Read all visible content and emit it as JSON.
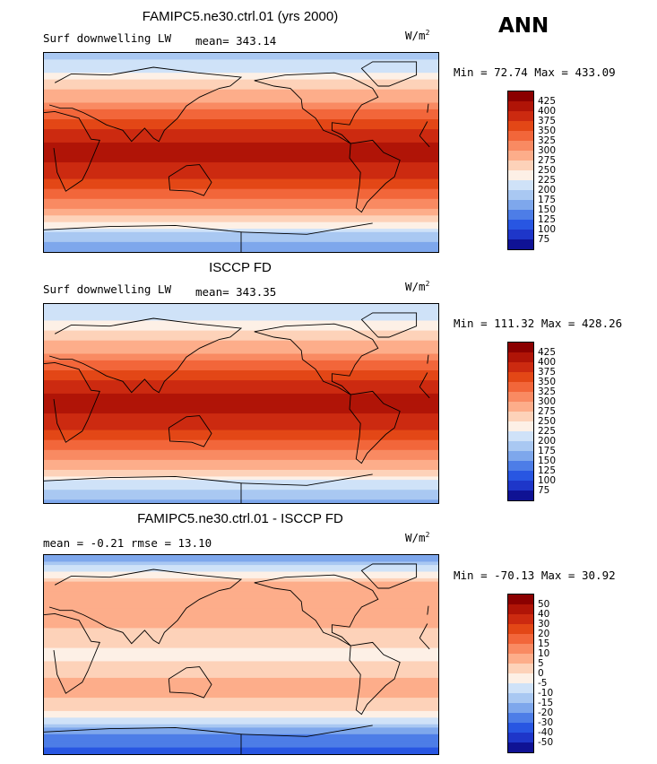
{
  "season": "ANN",
  "chart_data": [
    {
      "type": "heatmap",
      "title": "FAMIPC5.ne30.ctrl.01 (yrs 2000)",
      "field": "Surf downwelling LW",
      "stat_text": "mean= 343.14",
      "units": "W/m",
      "units_exp": "2",
      "minmax_text": "Min =  72.74 Max = 433.09",
      "mean": 343.14,
      "min": 72.74,
      "max": 433.09,
      "levels": [
        "425",
        "400",
        "375",
        "350",
        "325",
        "300",
        "275",
        "250",
        "225",
        "200",
        "175",
        "150",
        "125",
        "100",
        "75"
      ],
      "colors": [
        "#8b0000",
        "#b01407",
        "#cc2a10",
        "#e34716",
        "#f2663a",
        "#f98a62",
        "#fdad8a",
        "#fdd2b9",
        "#fdf0e6",
        "#cfe2f8",
        "#a9c8f2",
        "#7ea7ec",
        "#4d7de7",
        "#2856e2",
        "#1e36c9",
        "#0f1294"
      ],
      "zonal_profile": [
        [
          -90,
          150
        ],
        [
          -75,
          190
        ],
        [
          -60,
          265
        ],
        [
          -45,
          320
        ],
        [
          -30,
          360
        ],
        [
          -15,
          395
        ],
        [
          0,
          410
        ],
        [
          15,
          395
        ],
        [
          30,
          350
        ],
        [
          45,
          300
        ],
        [
          60,
          265
        ],
        [
          75,
          220
        ],
        [
          90,
          190
        ]
      ]
    },
    {
      "type": "heatmap",
      "title": "ISCCP FD",
      "field": "Surf downwelling LW",
      "stat_text": "mean= 343.35",
      "units": "W/m",
      "units_exp": "2",
      "minmax_text": "Min = 111.32 Max = 428.26",
      "mean": 343.35,
      "min": 111.32,
      "max": 428.26,
      "levels": [
        "425",
        "400",
        "375",
        "350",
        "325",
        "300",
        "275",
        "250",
        "225",
        "200",
        "175",
        "150",
        "125",
        "100",
        "75"
      ],
      "colors": [
        "#8b0000",
        "#b01407",
        "#cc2a10",
        "#e34716",
        "#f2663a",
        "#f98a62",
        "#fdad8a",
        "#fdd2b9",
        "#fdf0e6",
        "#cfe2f8",
        "#a9c8f2",
        "#7ea7ec",
        "#4d7de7",
        "#2856e2",
        "#1e36c9",
        "#0f1294"
      ],
      "zonal_profile": [
        [
          -90,
          165
        ],
        [
          -75,
          205
        ],
        [
          -60,
          270
        ],
        [
          -45,
          320
        ],
        [
          -30,
          360
        ],
        [
          -15,
          395
        ],
        [
          0,
          410
        ],
        [
          15,
          395
        ],
        [
          30,
          350
        ],
        [
          45,
          300
        ],
        [
          60,
          265
        ],
        [
          75,
          225
        ],
        [
          90,
          200
        ]
      ]
    },
    {
      "type": "heatmap",
      "title": "FAMIPC5.ne30.ctrl.01 - ISCCP FD",
      "field": "",
      "stat_text": "mean =   -0.21       rmse =   13.10",
      "units": "W/m",
      "units_exp": "2",
      "minmax_text": "Min = -70.13 Max =  30.92",
      "mean": -0.21,
      "rmse": 13.1,
      "min": -70.13,
      "max": 30.92,
      "levels": [
        "50",
        "40",
        "30",
        "20",
        "15",
        "10",
        "5",
        "0",
        "-5",
        "-10",
        "-15",
        "-20",
        "-30",
        "-40",
        "-50"
      ],
      "colors": [
        "#8b0000",
        "#b01407",
        "#cc2a10",
        "#e34716",
        "#f2663a",
        "#f98a62",
        "#fdad8a",
        "#fdd2b9",
        "#fdf0e6",
        "#cfe2f8",
        "#a9c8f2",
        "#7ea7ec",
        "#4d7de7",
        "#2856e2",
        "#1e36c9",
        "#0f1294"
      ],
      "zonal_profile": [
        [
          -90,
          -35
        ],
        [
          -75,
          -25
        ],
        [
          -60,
          -8
        ],
        [
          -45,
          4
        ],
        [
          -30,
          6
        ],
        [
          -15,
          4
        ],
        [
          0,
          -2
        ],
        [
          15,
          3
        ],
        [
          30,
          6
        ],
        [
          45,
          8
        ],
        [
          60,
          10
        ],
        [
          75,
          -5
        ],
        [
          90,
          -20
        ]
      ]
    }
  ]
}
